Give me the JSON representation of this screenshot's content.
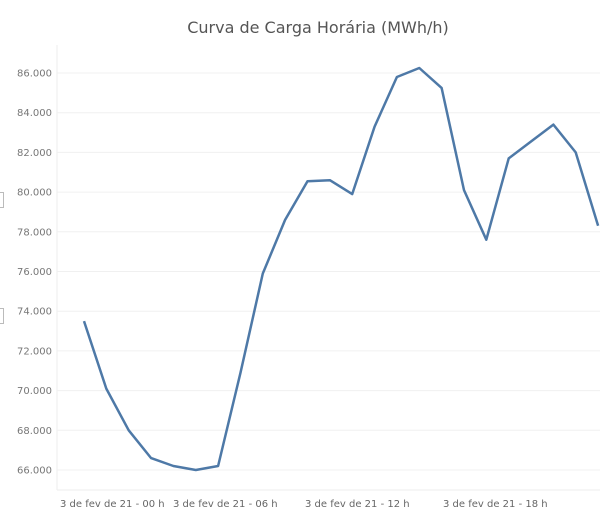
{
  "chart_data": {
    "type": "line",
    "title": "Curva de Carga Horária (MWh/h)",
    "xlabel": "",
    "ylabel": "",
    "x": [
      0,
      1,
      2,
      3,
      4,
      5,
      6,
      7,
      8,
      9,
      10,
      11,
      12,
      13,
      14,
      15,
      16,
      17,
      18,
      19,
      20,
      21,
      22,
      23
    ],
    "x_tick_labels": [
      "3 de fev de 21 - 00 h",
      "3 de fev de 21 - 06 h",
      "3 de fev de 21 - 12 h",
      "3 de fev de 21 - 18 h"
    ],
    "y_tick_labels": [
      "66.000",
      "68.000",
      "70.000",
      "72.000",
      "74.000",
      "76.000",
      "78.000",
      "80.000",
      "82.000",
      "84.000",
      "86.000"
    ],
    "ylim": [
      65000,
      87000
    ],
    "grid": true,
    "color": "#4e79a7",
    "series": [
      {
        "values": [
          73500,
          70100,
          68000,
          66600,
          66200,
          66000,
          66200,
          70900,
          75900,
          78600,
          80550,
          80600,
          79900,
          83300,
          85800,
          86250,
          85250,
          80100,
          77600,
          81700,
          82550,
          83400,
          82000,
          78300
        ]
      }
    ]
  }
}
